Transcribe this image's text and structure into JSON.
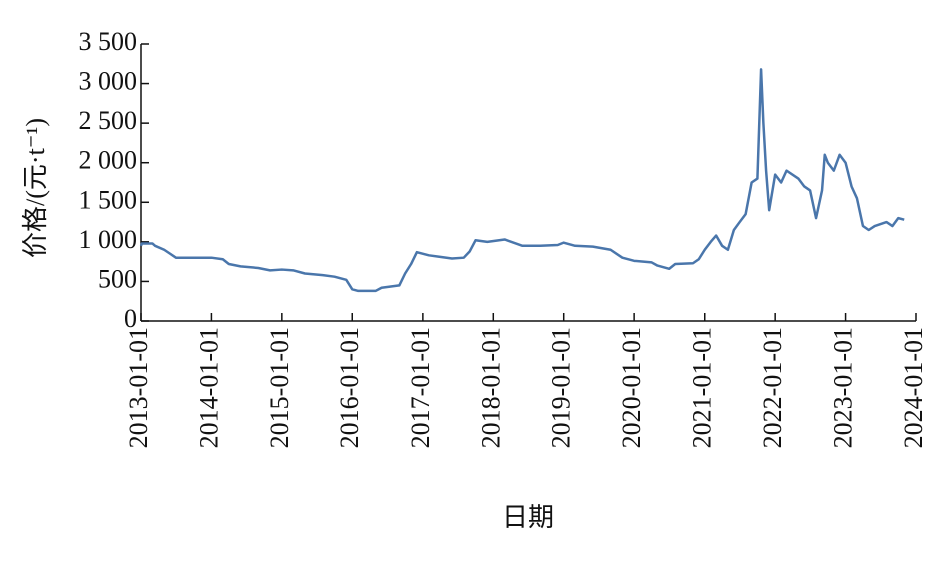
{
  "chart_data": {
    "type": "line",
    "x_label": "日期",
    "y_label": "价格/(元·t⁻¹)",
    "xlim": [
      "2013-01-01",
      "2024-01-01"
    ],
    "xticks": [
      "2013-01-01",
      "2014-01-01",
      "2015-01-01",
      "2016-01-01",
      "2017-01-01",
      "2018-01-01",
      "2019-01-01",
      "2020-01-01",
      "2021-01-01",
      "2022-01-01",
      "2023-01-01",
      "2024-01-01"
    ],
    "ylim": [
      0,
      3500
    ],
    "yticks": [
      0,
      500,
      {
        "value": 1000,
        "label": "1 000"
      },
      {
        "value": 1500,
        "label": "1 500"
      },
      {
        "value": 2000,
        "label": "2 000"
      },
      {
        "value": 2500,
        "label": "2 500"
      },
      {
        "value": 3000,
        "label": "3 000"
      },
      {
        "value": 3500,
        "label": "3 500"
      }
    ],
    "color": "#4a76ab",
    "x": [
      "2013-01-01",
      "2013-01-05",
      "2013-03-01",
      "2013-03-15",
      "2013-05-01",
      "2013-06-01",
      "2013-07-01",
      "2014-01-01",
      "2014-03-01",
      "2014-04-01",
      "2014-06-01",
      "2014-09-01",
      "2014-11-01",
      "2015-01-01",
      "2015-03-01",
      "2015-05-01",
      "2015-08-01",
      "2015-10-01",
      "2015-12-01",
      "2016-01-01",
      "2016-02-01",
      "2016-05-01",
      "2016-06-01",
      "2016-09-01",
      "2016-10-01",
      "2016-11-01",
      "2016-12-01",
      "2017-02-01",
      "2017-04-01",
      "2017-06-01",
      "2017-08-01",
      "2017-09-01",
      "2017-10-01",
      "2017-12-01",
      "2018-03-01",
      "2018-06-01",
      "2018-09-01",
      "2018-12-01",
      "2019-01-01",
      "2019-03-01",
      "2019-06-01",
      "2019-09-01",
      "2019-11-01",
      "2020-01-01",
      "2020-04-01",
      "2020-05-01",
      "2020-07-01",
      "2020-08-01",
      "2020-11-01",
      "2020-12-01",
      "2021-01-01",
      "2021-02-01",
      "2021-03-01",
      "2021-04-01",
      "2021-05-01",
      "2021-06-01",
      "2021-07-01",
      "2021-08-01",
      "2021-09-01",
      "2021-10-01",
      "2021-10-20",
      "2021-11-01",
      "2021-11-15",
      "2021-12-01",
      "2022-01-01",
      "2022-02-01",
      "2022-03-01",
      "2022-05-01",
      "2022-06-01",
      "2022-07-01",
      "2022-08-01",
      "2022-09-01",
      "2022-09-15",
      "2022-10-01",
      "2022-11-01",
      "2022-12-01",
      "2023-01-01",
      "2023-02-01",
      "2023-03-01",
      "2023-04-01",
      "2023-05-01",
      "2023-06-01",
      "2023-08-01",
      "2023-09-01",
      "2023-10-01",
      "2023-11-01"
    ],
    "values": [
      950,
      980,
      980,
      950,
      900,
      850,
      800,
      800,
      780,
      720,
      690,
      670,
      640,
      650,
      640,
      600,
      580,
      560,
      520,
      400,
      380,
      380,
      420,
      450,
      600,
      720,
      870,
      830,
      810,
      790,
      800,
      880,
      1020,
      1000,
      1030,
      950,
      950,
      960,
      990,
      950,
      940,
      900,
      800,
      760,
      740,
      700,
      660,
      720,
      730,
      780,
      900,
      1000,
      1080,
      950,
      900,
      1150,
      1250,
      1350,
      1750,
      1800,
      3180,
      2500,
      1900,
      1400,
      1850,
      1750,
      1900,
      1800,
      1700,
      1650,
      1300,
      1650,
      2100,
      2000,
      1900,
      2100,
      2000,
      1700,
      1550,
      1200,
      1150,
      1200,
      1250,
      1200,
      1300,
      1280
    ]
  }
}
